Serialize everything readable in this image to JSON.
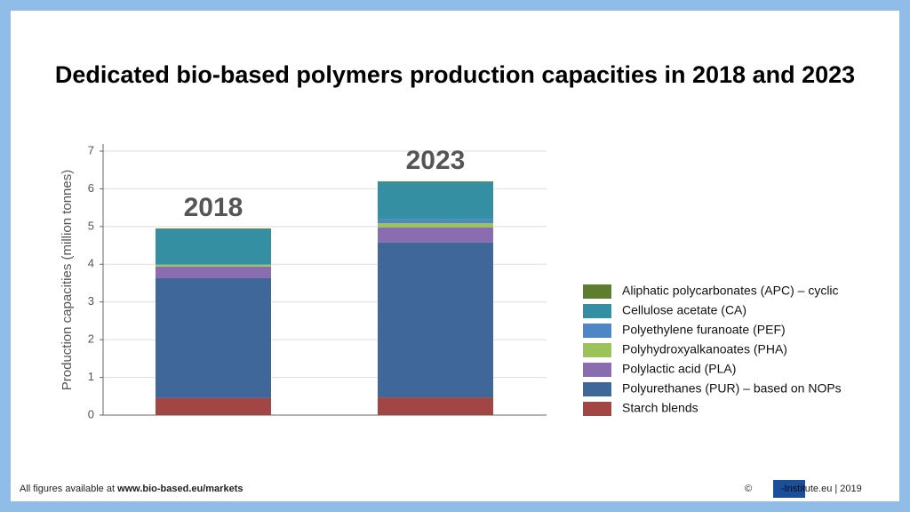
{
  "chart_data": {
    "type": "stacked_bar",
    "title": "Dedicated bio-based polymers production capacities in 2018 and 2023",
    "y_label": "Production capacities (million tonnes)",
    "categories": [
      "2018",
      "2023"
    ],
    "series": [
      {
        "name": "Starch blends",
        "color": "#a24645",
        "values": [
          0.45,
          0.47
        ]
      },
      {
        "name": "Polyurethanes (PUR) – based on NOPs",
        "color": "#40679a",
        "values": [
          3.18,
          4.11
        ]
      },
      {
        "name": "Polylactic acid (PLA)",
        "color": "#8a6db0",
        "values": [
          0.31,
          0.4
        ]
      },
      {
        "name": "Polyhydroxyalkanoates (PHA)",
        "color": "#9bc35a",
        "values": [
          0.05,
          0.11
        ]
      },
      {
        "name": "Polyethylene furanoate (PEF)",
        "color": "#4f86c6",
        "values": [
          0,
          0.1
        ]
      },
      {
        "name": "Cellulose acetate (CA)",
        "color": "#358fa3",
        "values": [
          0.94,
          0.99
        ]
      },
      {
        "name": "Aliphatic polycarbonates (APC) – cyclic",
        "color": "#5f7d2f",
        "values": [
          0.02,
          0.02
        ]
      }
    ],
    "ylim": [
      0,
      7
    ],
    "yticks": [
      0,
      1,
      2,
      3,
      4,
      5,
      6,
      7
    ],
    "grid": true
  },
  "footer": {
    "text": "All figures available at ",
    "link": "www.bio-based.eu/markets"
  },
  "credit": {
    "symbol": "©",
    "logo": "nova",
    "text": "-Institute.eu | 2019"
  }
}
